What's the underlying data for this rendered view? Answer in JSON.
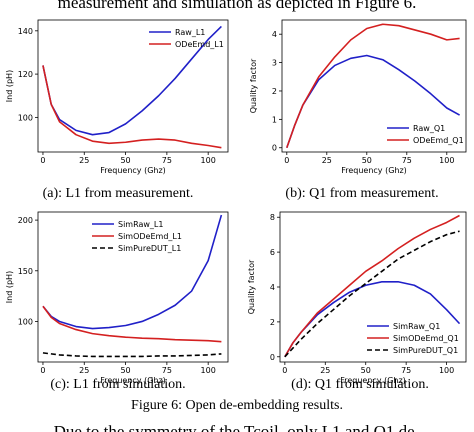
{
  "top_text": "measurement and simulation as depicted in Figure 6.",
  "figure_caption": "Figure 6: Open de-embedding results.",
  "bottom_text": "Due to the symmetry of the Tcoil, only L1 and Q1 de-",
  "chart_data": [
    {
      "type": "line",
      "caption": "(a): L1 from measurement.",
      "xlabel": "Frequency (Ghz)",
      "ylabel": "Ind (pH)",
      "x": [
        0,
        5,
        10,
        20,
        30,
        40,
        50,
        60,
        70,
        80,
        90,
        100,
        108
      ],
      "xlim": [
        -3,
        112
      ],
      "xticks": [
        0,
        25,
        50,
        75,
        100
      ],
      "ylim": [
        84,
        145
      ],
      "yticks": [
        100,
        120,
        140
      ],
      "legend": "upper right",
      "series": [
        {
          "name": "Raw_L1",
          "color": "#2020c8",
          "values": [
            124,
            106,
            99,
            94,
            92,
            93,
            97,
            103,
            110,
            118,
            127,
            136,
            142
          ]
        },
        {
          "name": "ODeEmd_L1",
          "color": "#d42020",
          "values": [
            124,
            106,
            98,
            92,
            89,
            88,
            88.5,
            89.5,
            90,
            89.5,
            88,
            87,
            86
          ]
        }
      ]
    },
    {
      "type": "line",
      "caption": "(b): Q1 from measurement.",
      "xlabel": "Frequency (Ghz)",
      "ylabel": "Quality factor",
      "x": [
        0,
        5,
        10,
        20,
        30,
        40,
        50,
        60,
        70,
        80,
        90,
        100,
        108
      ],
      "xlim": [
        -3,
        112
      ],
      "xticks": [
        0,
        25,
        50,
        75,
        100
      ],
      "ylim": [
        -0.15,
        4.5
      ],
      "yticks": [
        0,
        1,
        2,
        3,
        4
      ],
      "legend": "lower right",
      "series": [
        {
          "name": "Raw_Q1",
          "color": "#2020c8",
          "values": [
            0,
            0.8,
            1.5,
            2.4,
            2.9,
            3.15,
            3.25,
            3.1,
            2.75,
            2.35,
            1.9,
            1.4,
            1.15
          ]
        },
        {
          "name": "ODeEmd_Q1",
          "color": "#d42020",
          "values": [
            0,
            0.8,
            1.5,
            2.5,
            3.2,
            3.8,
            4.2,
            4.35,
            4.3,
            4.15,
            4.0,
            3.8,
            3.85
          ]
        }
      ]
    },
    {
      "type": "line",
      "caption": "(c): L1 from simulation.",
      "xlabel": "Frequency (Ghz)",
      "ylabel": "Ind (pH)",
      "x": [
        0,
        5,
        10,
        20,
        30,
        40,
        50,
        60,
        70,
        80,
        90,
        100,
        108
      ],
      "xlim": [
        -3,
        112
      ],
      "xticks": [
        0,
        25,
        50,
        75,
        100
      ],
      "ylim": [
        60,
        208
      ],
      "yticks": [
        100,
        150,
        200
      ],
      "legend": "upper left",
      "series": [
        {
          "name": "SimRaw_L1",
          "color": "#2020c8",
          "values": [
            115,
            105,
            100,
            95,
            93,
            94,
            96,
            100,
            107,
            116,
            130,
            160,
            205
          ]
        },
        {
          "name": "SimODeEmd_L1",
          "color": "#d42020",
          "values": [
            115,
            104,
            98,
            92,
            88,
            86,
            84.5,
            83.5,
            83,
            82,
            81.5,
            81,
            80
          ]
        },
        {
          "name": "SimPureDUT_L1",
          "color": "#000000",
          "linestyle": "dashed",
          "values": [
            69,
            68,
            67,
            66,
            65.5,
            65.5,
            65.5,
            65.5,
            66,
            66,
            66.5,
            67,
            68
          ]
        }
      ]
    },
    {
      "type": "line",
      "caption": "(d): Q1 from simulation.",
      "xlabel": "Frequency (Ghz)",
      "ylabel": "Quality factor",
      "x": [
        0,
        5,
        10,
        20,
        30,
        40,
        50,
        60,
        70,
        80,
        90,
        100,
        108
      ],
      "xlim": [
        -3,
        112
      ],
      "xticks": [
        0,
        25,
        50,
        75,
        100
      ],
      "ylim": [
        -0.3,
        8.3
      ],
      "yticks": [
        0,
        2,
        4,
        6,
        8
      ],
      "legend": "lower right",
      "series": [
        {
          "name": "SimRaw_Q1",
          "color": "#2020c8",
          "values": [
            0,
            0.8,
            1.4,
            2.4,
            3.1,
            3.7,
            4.1,
            4.3,
            4.3,
            4.1,
            3.6,
            2.7,
            1.9
          ]
        },
        {
          "name": "SimODeEmd_Q1",
          "color": "#d42020",
          "values": [
            0,
            0.8,
            1.4,
            2.5,
            3.3,
            4.1,
            4.9,
            5.5,
            6.2,
            6.8,
            7.3,
            7.7,
            8.1
          ]
        },
        {
          "name": "SimPureDUT_Q1",
          "color": "#000000",
          "linestyle": "dashed",
          "values": [
            0,
            0.5,
            1.0,
            1.9,
            2.7,
            3.5,
            4.2,
            4.9,
            5.6,
            6.1,
            6.6,
            7.0,
            7.2
          ]
        }
      ]
    }
  ]
}
